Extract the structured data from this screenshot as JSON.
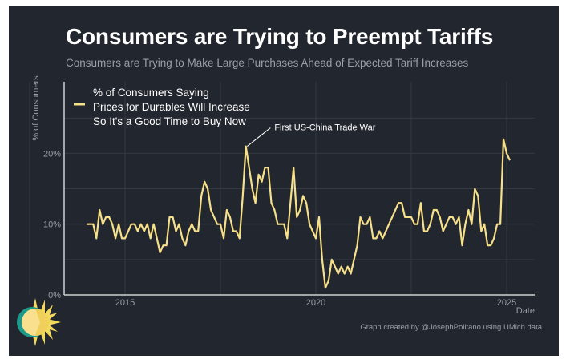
{
  "title": "Consumers are Trying to Preempt Tariffs",
  "subtitle": "Consumers are Trying to Make Large Purchases Ahead of Expected Tariff Increases",
  "credit": "Graph created by @JosephPolitano using UMich data",
  "chart_data": {
    "type": "line",
    "xlabel": "Date",
    "ylabel": "% of Consumers",
    "ylim": [
      0,
      30
    ],
    "xlim": [
      2013.4,
      2025.6
    ],
    "yticks": [
      "0%",
      "10%",
      "20%"
    ],
    "xticks": [
      "2015",
      "2020",
      "2025"
    ],
    "grid": true,
    "legend": {
      "position": "top-left",
      "lines": [
        "% of Consumers Saying",
        "Prices for Durables Will Increase",
        "So It's a Good Time to Buy Now"
      ]
    },
    "annotation": {
      "text": "First US-China Trade War",
      "x": 2018.2,
      "y": 21
    },
    "color": "#f7e08a",
    "start": 2014.0,
    "frequency": "monthly",
    "series": [
      {
        "name": "% of Consumers Saying Prices for Durables Will Increase So It's a Good Time to Buy Now",
        "values": [
          10,
          10,
          10,
          8,
          12,
          10,
          11,
          11,
          10,
          8,
          10,
          8,
          8,
          9,
          10,
          10,
          9,
          10,
          9,
          10,
          8,
          10,
          8,
          6,
          7,
          7,
          11,
          11,
          9,
          10,
          8,
          7,
          9,
          10,
          9,
          9,
          14,
          16,
          15,
          12,
          11,
          10,
          10,
          8,
          12,
          11,
          9,
          9,
          8,
          14,
          21,
          18,
          15,
          13,
          17,
          16,
          18,
          18,
          13,
          12,
          10,
          10,
          10,
          8,
          13,
          18,
          11,
          12,
          14,
          13,
          10,
          9,
          8,
          11,
          5,
          1,
          2,
          5,
          4,
          3,
          4,
          3,
          4,
          3,
          5,
          7,
          11,
          10,
          10,
          11,
          8,
          8,
          9,
          8,
          9,
          10,
          11,
          12,
          13,
          13,
          11,
          11,
          11,
          10,
          10,
          13,
          9,
          9,
          10,
          12,
          12,
          11,
          9,
          10,
          11,
          11,
          10,
          11,
          7,
          10,
          12,
          10,
          15,
          14,
          9,
          10,
          7,
          7,
          8,
          10,
          10,
          22,
          20,
          19
        ]
      }
    ]
  }
}
